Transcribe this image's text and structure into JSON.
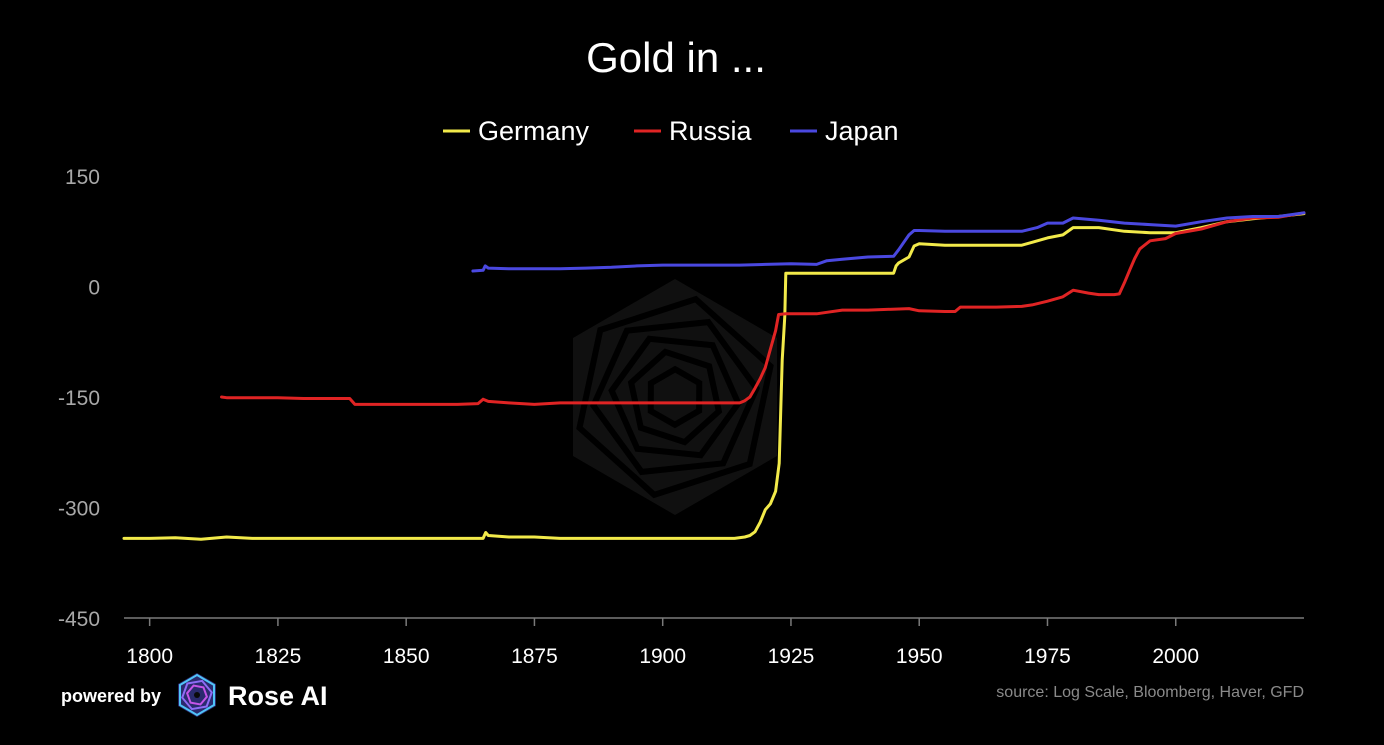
{
  "chart_data": {
    "type": "line",
    "title": "Gold in ...",
    "xlabel": "",
    "ylabel": "",
    "xlim": [
      1795,
      2025
    ],
    "ylim": [
      -450,
      150
    ],
    "x_ticks": [
      1800,
      1825,
      1850,
      1875,
      1900,
      1925,
      1950,
      1975,
      2000
    ],
    "y_ticks": [
      150,
      0,
      -150,
      -300,
      -450
    ],
    "grid": false,
    "legend_position": "top-center",
    "source": "source: Log Scale, Bloomberg, Haver, GFD",
    "series": [
      {
        "name": "Germany",
        "color": "#f2ea4a",
        "points": [
          [
            1795,
            -342
          ],
          [
            1800,
            -342
          ],
          [
            1805,
            -341
          ],
          [
            1810,
            -343
          ],
          [
            1815,
            -340
          ],
          [
            1820,
            -342
          ],
          [
            1830,
            -342
          ],
          [
            1840,
            -342
          ],
          [
            1850,
            -342
          ],
          [
            1860,
            -342
          ],
          [
            1865,
            -342
          ],
          [
            1865.5,
            -334
          ],
          [
            1866,
            -338
          ],
          [
            1870,
            -340
          ],
          [
            1875,
            -340
          ],
          [
            1880,
            -342
          ],
          [
            1890,
            -342
          ],
          [
            1900,
            -342
          ],
          [
            1910,
            -342
          ],
          [
            1914,
            -342
          ],
          [
            1916,
            -340
          ],
          [
            1917,
            -338
          ],
          [
            1918,
            -333
          ],
          [
            1919,
            -320
          ],
          [
            1920,
            -303
          ],
          [
            1921,
            -295
          ],
          [
            1922,
            -278
          ],
          [
            1922.7,
            -240
          ],
          [
            1923.3,
            -100
          ],
          [
            1923.8,
            -40
          ],
          [
            1924,
            18
          ],
          [
            1926,
            18
          ],
          [
            1930,
            18
          ],
          [
            1935,
            18
          ],
          [
            1940,
            18
          ],
          [
            1945,
            18
          ],
          [
            1945.5,
            28
          ],
          [
            1946,
            32
          ],
          [
            1948,
            40
          ],
          [
            1949,
            55
          ],
          [
            1950,
            58
          ],
          [
            1955,
            56
          ],
          [
            1960,
            56
          ],
          [
            1965,
            56
          ],
          [
            1970,
            56
          ],
          [
            1972,
            60
          ],
          [
            1975,
            66
          ],
          [
            1978,
            70
          ],
          [
            1980,
            80
          ],
          [
            1985,
            80
          ],
          [
            1990,
            75
          ],
          [
            1995,
            73
          ],
          [
            2000,
            73
          ],
          [
            2005,
            80
          ],
          [
            2010,
            88
          ],
          [
            2015,
            92
          ],
          [
            2020,
            95
          ],
          [
            2025,
            99
          ]
        ]
      },
      {
        "name": "Russia",
        "color": "#e02424",
        "points": [
          [
            1814,
            -150
          ],
          [
            1815,
            -151
          ],
          [
            1820,
            -151
          ],
          [
            1825,
            -151
          ],
          [
            1830,
            -152
          ],
          [
            1835,
            -152
          ],
          [
            1839,
            -152
          ],
          [
            1840,
            -160
          ],
          [
            1845,
            -160
          ],
          [
            1850,
            -160
          ],
          [
            1855,
            -160
          ],
          [
            1860,
            -160
          ],
          [
            1864,
            -159
          ],
          [
            1865,
            -153
          ],
          [
            1866,
            -156
          ],
          [
            1870,
            -158
          ],
          [
            1875,
            -160
          ],
          [
            1880,
            -158
          ],
          [
            1890,
            -158
          ],
          [
            1900,
            -158
          ],
          [
            1910,
            -158
          ],
          [
            1915,
            -158
          ],
          [
            1916,
            -155
          ],
          [
            1917,
            -150
          ],
          [
            1918,
            -138
          ],
          [
            1919,
            -125
          ],
          [
            1920,
            -110
          ],
          [
            1921,
            -85
          ],
          [
            1922,
            -60
          ],
          [
            1922.6,
            -38
          ],
          [
            1924,
            -37
          ],
          [
            1926,
            -37
          ],
          [
            1930,
            -37
          ],
          [
            1932,
            -35
          ],
          [
            1935,
            -32
          ],
          [
            1940,
            -32
          ],
          [
            1948,
            -30
          ],
          [
            1950,
            -33
          ],
          [
            1955,
            -34
          ],
          [
            1957,
            -34
          ],
          [
            1958,
            -28
          ],
          [
            1965,
            -28
          ],
          [
            1970,
            -27
          ],
          [
            1972,
            -25
          ],
          [
            1975,
            -20
          ],
          [
            1978,
            -14
          ],
          [
            1980,
            -5
          ],
          [
            1983,
            -9
          ],
          [
            1985,
            -11
          ],
          [
            1988,
            -11
          ],
          [
            1989,
            -10
          ],
          [
            1990,
            5
          ],
          [
            1991,
            22
          ],
          [
            1992,
            38
          ],
          [
            1993,
            51
          ],
          [
            1995,
            62
          ],
          [
            1998,
            65
          ],
          [
            2000,
            72
          ],
          [
            2005,
            78
          ],
          [
            2010,
            88
          ],
          [
            2015,
            93
          ],
          [
            2020,
            94
          ],
          [
            2025,
            100
          ]
        ]
      },
      {
        "name": "Japan",
        "color": "#4a48e0",
        "points": [
          [
            1863,
            21
          ],
          [
            1865,
            22
          ],
          [
            1865.4,
            28
          ],
          [
            1866,
            25
          ],
          [
            1870,
            24
          ],
          [
            1875,
            24
          ],
          [
            1880,
            24
          ],
          [
            1885,
            25
          ],
          [
            1890,
            26
          ],
          [
            1895,
            28
          ],
          [
            1900,
            29
          ],
          [
            1905,
            29
          ],
          [
            1910,
            29
          ],
          [
            1915,
            29
          ],
          [
            1920,
            30
          ],
          [
            1925,
            31
          ],
          [
            1930,
            30
          ],
          [
            1932,
            35
          ],
          [
            1935,
            37
          ],
          [
            1940,
            40
          ],
          [
            1945,
            41
          ],
          [
            1946,
            50
          ],
          [
            1947,
            60
          ],
          [
            1948,
            70
          ],
          [
            1949,
            76
          ],
          [
            1950,
            76
          ],
          [
            1955,
            75
          ],
          [
            1960,
            75
          ],
          [
            1965,
            75
          ],
          [
            1970,
            75
          ],
          [
            1973,
            80
          ],
          [
            1975,
            86
          ],
          [
            1978,
            86
          ],
          [
            1980,
            93
          ],
          [
            1985,
            90
          ],
          [
            1990,
            86
          ],
          [
            1995,
            84
          ],
          [
            2000,
            82
          ],
          [
            2005,
            88
          ],
          [
            2010,
            93
          ],
          [
            2015,
            95
          ],
          [
            2020,
            95
          ],
          [
            2025,
            100
          ]
        ]
      }
    ]
  },
  "brand": {
    "powered_by": "powered by",
    "name": "Rose AI",
    "logo_icon": "rose-ai-logo-icon",
    "watermark_icon": "rose-ai-watermark-icon"
  },
  "colors": {
    "background": "#000000",
    "axis": "#7a7a7a",
    "ytick": "#a8a8a8",
    "xtick": "#ffffff"
  }
}
